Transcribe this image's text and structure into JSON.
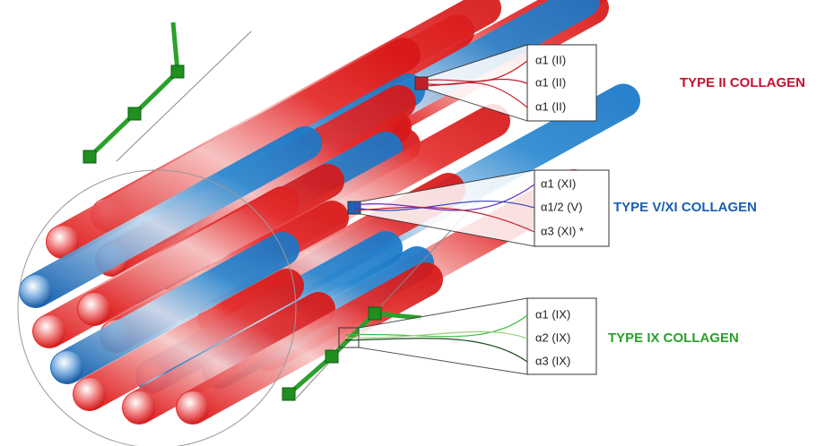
{
  "groups": [
    {
      "title": "TYPE II COLLAGEN",
      "chains": [
        "α1 (II)",
        "α1 (II)",
        "α1 (II)"
      ]
    },
    {
      "title": "TYPE V/XI COLLAGEN",
      "chains": [
        "α1 (XI)",
        "α1/2 (V)",
        "α3 (XI) *"
      ]
    },
    {
      "title": "TYPE IX COLLAGEN",
      "chains": [
        "α1 (IX)",
        "α2 (IX)",
        "α3 (IX)"
      ]
    }
  ]
}
